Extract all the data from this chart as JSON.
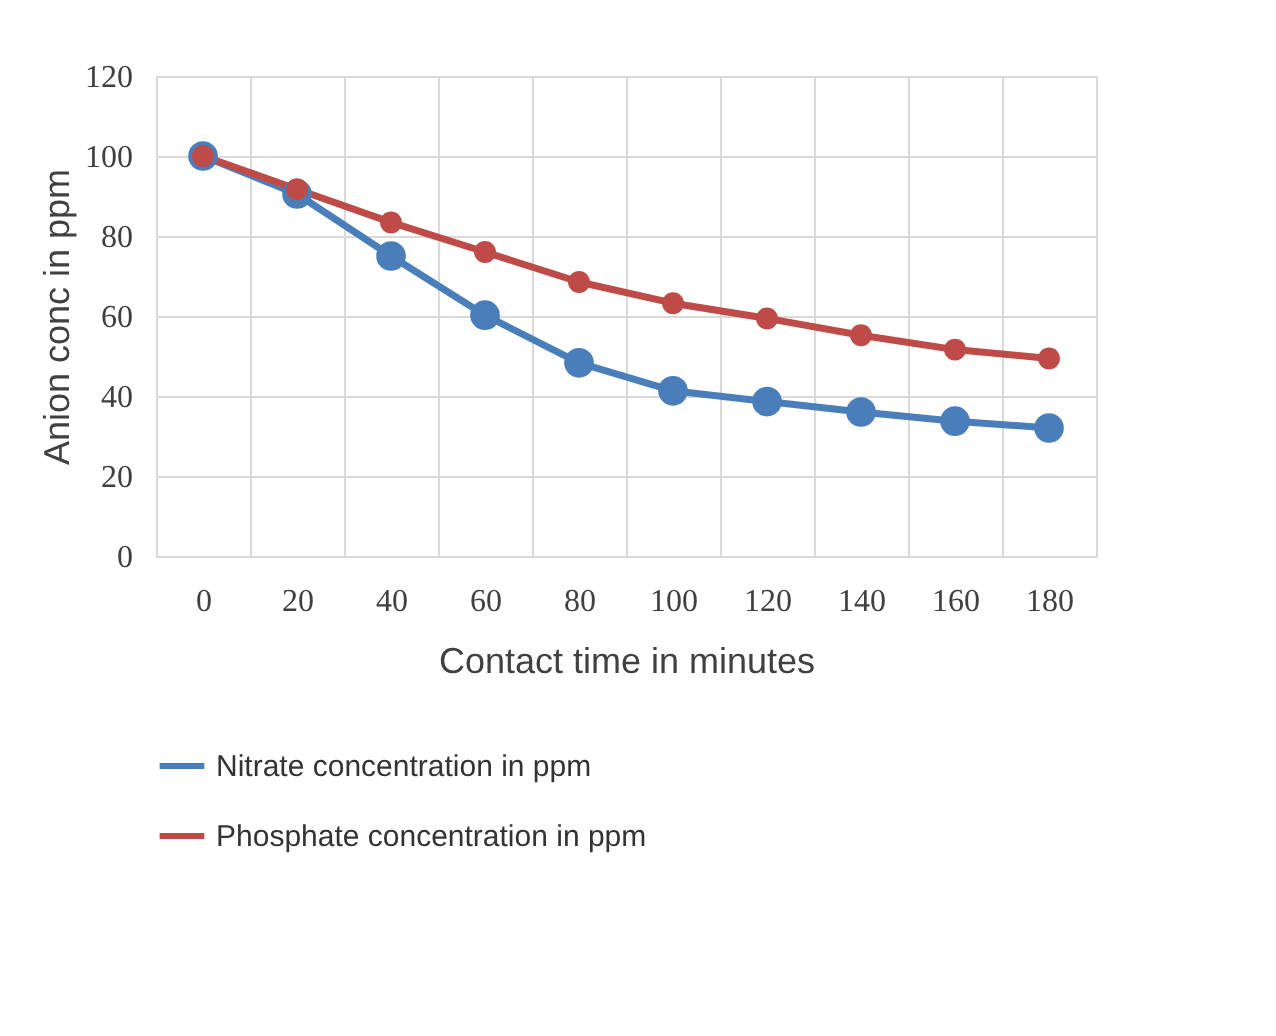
{
  "chart_data": {
    "type": "line",
    "categories": [
      "0",
      "20",
      "40",
      "60",
      "80",
      "100",
      "120",
      "140",
      "160",
      "180"
    ],
    "series": [
      {
        "name": "Nitrate concentration in ppm",
        "color": "#4a7ebb",
        "values": [
          100,
          90.5,
          75,
          60.2,
          48.3,
          41.3,
          38.6,
          36,
          33.7,
          32
        ]
      },
      {
        "name": "Phosphate concentration in ppm",
        "color": "#be4b48",
        "values": [
          100,
          91.7,
          83.4,
          76,
          68.5,
          63.2,
          59.4,
          55.2,
          51.6,
          49.4
        ]
      }
    ],
    "xlabel": "Contact time in minutes",
    "ylabel": "Anion conc in ppm",
    "ylim": [
      0,
      120
    ],
    "yticks": [
      0,
      20,
      40,
      60,
      80,
      100,
      120
    ],
    "grid": true,
    "legend": "bottom",
    "marker": "circle",
    "line_style": "solid"
  }
}
